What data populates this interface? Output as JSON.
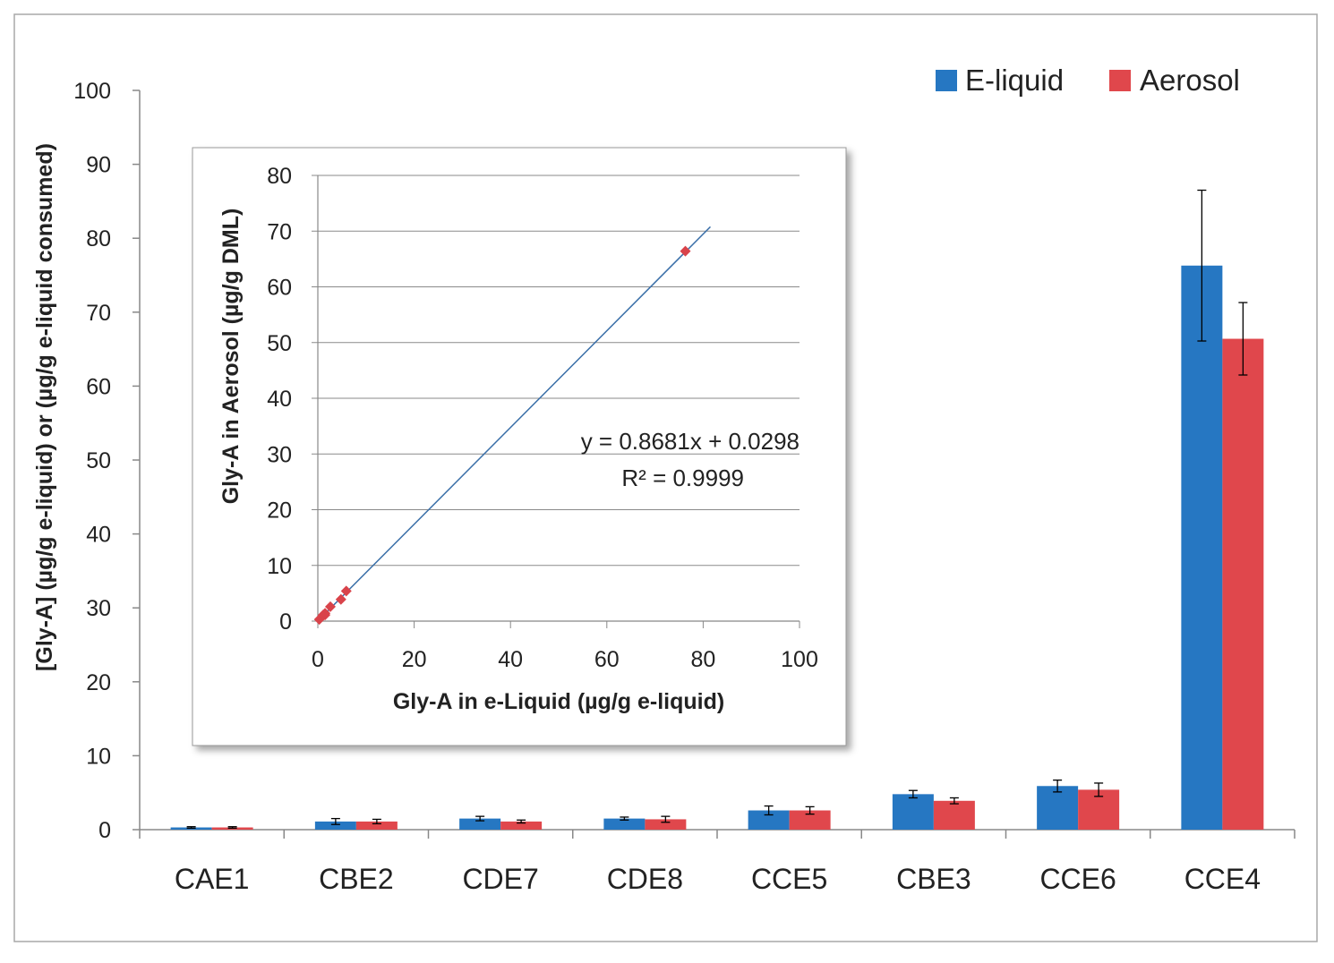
{
  "chart_data": [
    {
      "type": "bar",
      "ylabel": "[Gly-A] (µg/g e-liquid) or  (µg/g e-liquid consumed)",
      "ylim": [
        0,
        100
      ],
      "yticks": [
        0,
        10,
        20,
        30,
        40,
        50,
        60,
        70,
        80,
        90,
        100
      ],
      "categories": [
        "CAE1",
        "CBE2",
        "CDE7",
        "CDE8",
        "CCE5",
        "CBE3",
        "CCE6",
        "CCE4"
      ],
      "legend": {
        "position": "top-right"
      },
      "series": [
        {
          "name": "E-liquid",
          "color": "#2677c2",
          "values": [
            0.3,
            1.1,
            1.5,
            1.5,
            2.6,
            4.8,
            5.9,
            76.3
          ],
          "errors": [
            0.1,
            0.4,
            0.3,
            0.2,
            0.6,
            0.5,
            0.8,
            10.2
          ]
        },
        {
          "name": "Aerosol",
          "color": "#e0474c",
          "values": [
            0.3,
            1.1,
            1.1,
            1.4,
            2.6,
            3.9,
            5.4,
            66.4
          ],
          "errors": [
            0.1,
            0.3,
            0.2,
            0.4,
            0.5,
            0.4,
            0.9,
            4.9
          ]
        }
      ]
    },
    {
      "type": "scatter",
      "xlabel": "Gly-A in e-Liquid (µg/g e-liquid)",
      "ylabel": "Gly-A in Aerosol (µg/g DML)",
      "xlim": [
        0,
        100
      ],
      "ylim": [
        0,
        80
      ],
      "xticks": [
        0,
        20,
        40,
        60,
        80,
        100
      ],
      "yticks": [
        0,
        10,
        20,
        30,
        40,
        50,
        60,
        70,
        80
      ],
      "points": [
        [
          0.3,
          0.3
        ],
        [
          1.1,
          1.1
        ],
        [
          1.5,
          1.1
        ],
        [
          1.5,
          1.4
        ],
        [
          2.6,
          2.6
        ],
        [
          4.8,
          3.9
        ],
        [
          5.9,
          5.4
        ],
        [
          76.3,
          66.4
        ]
      ],
      "trendline": {
        "slope": 0.8681,
        "intercept": 0.0298,
        "x_range": [
          0,
          81.5
        ]
      },
      "annotation": {
        "equation": "y = 0.8681x + 0.0298",
        "r2": "R² = 0.9999"
      },
      "marker_color": "#d9434a",
      "line_color": "#3a6fa8"
    }
  ]
}
